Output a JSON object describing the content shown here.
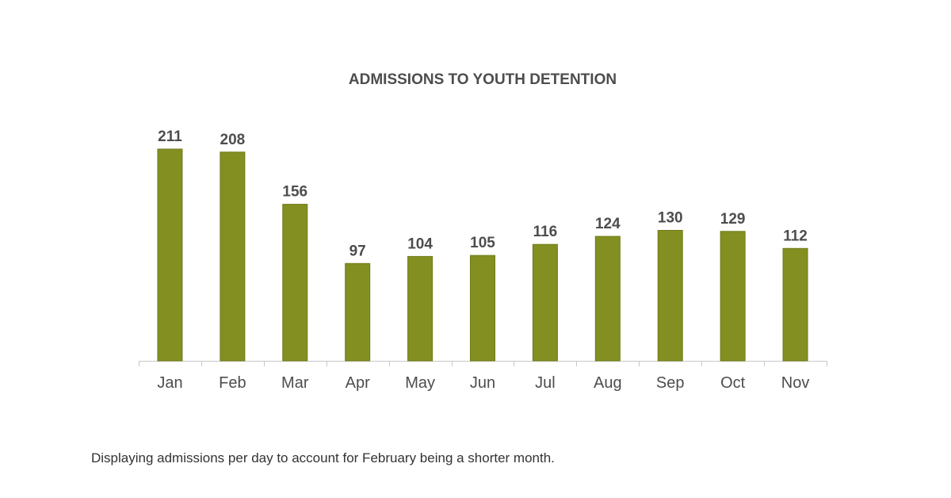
{
  "chart_data": {
    "type": "bar",
    "title": "ADMISSIONS TO YOUTH DETENTION",
    "categories": [
      "Jan",
      "Feb",
      "Mar",
      "Apr",
      "May",
      "Jun",
      "Jul",
      "Aug",
      "Sep",
      "Oct",
      "Nov"
    ],
    "values": [
      211,
      208,
      156,
      97,
      104,
      105,
      116,
      124,
      130,
      129,
      112
    ],
    "xlabel": "",
    "ylabel": "",
    "ylim": [
      0,
      211
    ],
    "grid": false,
    "legend": "none",
    "bar_color": "#848f22",
    "text_color": "#4d4d4d"
  },
  "footnote": "Displaying admissions per day to account for February being a shorter month."
}
